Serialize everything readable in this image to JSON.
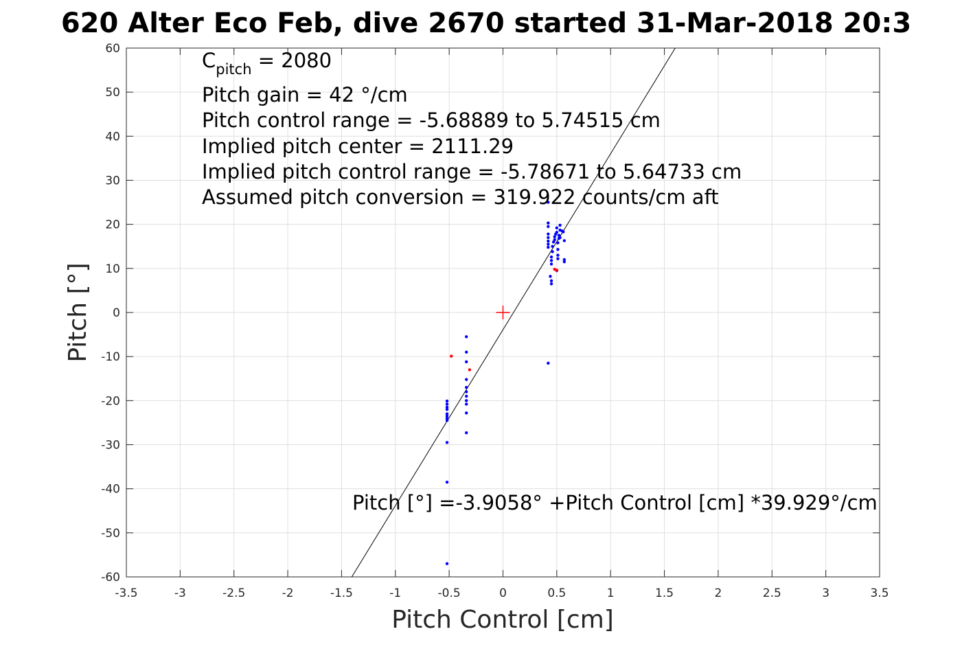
{
  "chart_data": {
    "type": "scatter",
    "title": "620 Alter Eco Feb, dive 2670 started 31-Mar-2018 20:3",
    "xlabel": "Pitch Control [cm]",
    "ylabel": "Pitch [°]",
    "xlim": [
      -3.5,
      3.5
    ],
    "ylim": [
      -60,
      60
    ],
    "xticks": [
      -3.5,
      -3,
      -2.5,
      -2,
      -1.5,
      -1,
      -0.5,
      0,
      0.5,
      1,
      1.5,
      2,
      2.5,
      3,
      3.5
    ],
    "xtick_labels": [
      "-3.5",
      "-3",
      "-2.5",
      "-2",
      "-1.5",
      "-1",
      "-0.5",
      "0",
      "0.5",
      "1",
      "1.5",
      "2",
      "2.5",
      "3",
      "3.5"
    ],
    "yticks": [
      -60,
      -50,
      -40,
      -30,
      -20,
      -10,
      0,
      10,
      20,
      30,
      40,
      50,
      60
    ],
    "ytick_labels": [
      "-60",
      "-50",
      "-40",
      "-30",
      "-20",
      "-10",
      "0",
      "10",
      "20",
      "30",
      "40",
      "50",
      "60"
    ],
    "grid": true,
    "fit_line": {
      "intercept": -3.9058,
      "slope": 39.929
    },
    "center_marker": {
      "x": 0,
      "y": 0,
      "color": "#ff0000"
    },
    "annotations": {
      "c_pitch_base": "C",
      "c_pitch_sub": "pitch",
      "c_pitch_value": " = 2080",
      "lines": [
        "Pitch gain = 42 °/cm",
        "Pitch control range = -5.68889 to 5.74515 cm",
        "Implied pitch center = 2111.29",
        "Implied pitch control range = -5.78671 to 5.64733 cm",
        "Assumed pitch conversion = 319.922 counts/cm aft"
      ],
      "fit_equation": "Pitch [°] =-3.9058° +Pitch Control [cm] *39.929°/cm"
    },
    "series": [
      {
        "color": "#0000ff",
        "points": [
          [
            -0.52,
            -20.1
          ],
          [
            -0.52,
            -20.8
          ],
          [
            -0.52,
            -21.5
          ],
          [
            -0.52,
            -22.0
          ],
          [
            -0.52,
            -23.0
          ],
          [
            -0.52,
            -23.5
          ],
          [
            -0.52,
            -24.0
          ],
          [
            -0.52,
            -24.5
          ],
          [
            -0.52,
            -29.5
          ],
          [
            -0.52,
            -38.5
          ],
          [
            -0.52,
            -57.0
          ],
          [
            -0.34,
            -5.5
          ],
          [
            -0.34,
            -9.0
          ],
          [
            -0.34,
            -11.2
          ],
          [
            -0.34,
            -15.2
          ],
          [
            -0.34,
            -17.0
          ],
          [
            -0.34,
            -18.0
          ],
          [
            -0.34,
            -19.0
          ],
          [
            -0.34,
            -20.0
          ],
          [
            -0.34,
            -20.8
          ],
          [
            -0.34,
            -22.8
          ],
          [
            -0.34,
            -27.3
          ],
          [
            0.42,
            -11.5
          ],
          [
            0.42,
            20.3
          ],
          [
            0.42,
            19.5
          ],
          [
            0.42,
            17.8
          ],
          [
            0.42,
            17.0
          ],
          [
            0.42,
            16.2
          ],
          [
            0.42,
            15.5
          ],
          [
            0.42,
            14.8
          ],
          [
            0.42,
            25.0
          ],
          [
            0.44,
            8.2
          ],
          [
            0.45,
            6.5
          ],
          [
            0.45,
            7.2
          ],
          [
            0.45,
            11.0
          ],
          [
            0.45,
            11.8
          ],
          [
            0.45,
            12.6
          ],
          [
            0.46,
            13.8
          ],
          [
            0.46,
            15.0
          ],
          [
            0.47,
            16.0
          ],
          [
            0.48,
            16.5
          ],
          [
            0.48,
            17.2
          ],
          [
            0.49,
            17.8
          ],
          [
            0.5,
            18.2
          ],
          [
            0.5,
            19.2
          ],
          [
            0.51,
            13.0
          ],
          [
            0.51,
            12.2
          ],
          [
            0.51,
            14.3
          ],
          [
            0.51,
            15.8
          ],
          [
            0.52,
            16.8
          ],
          [
            0.52,
            17.5
          ],
          [
            0.53,
            19.8
          ],
          [
            0.53,
            18.7
          ],
          [
            0.55,
            18.5
          ],
          [
            0.56,
            18.3
          ],
          [
            0.57,
            16.3
          ],
          [
            0.57,
            12.0
          ],
          [
            0.57,
            11.5
          ],
          [
            0.53,
            17.0
          ],
          [
            0.5,
            9.5
          ]
        ]
      },
      {
        "color": "#ff0000",
        "points": [
          [
            -0.48,
            -9.9
          ],
          [
            -0.31,
            -13.0
          ],
          [
            0.48,
            9.8
          ],
          [
            0.5,
            9.6
          ]
        ]
      }
    ]
  }
}
